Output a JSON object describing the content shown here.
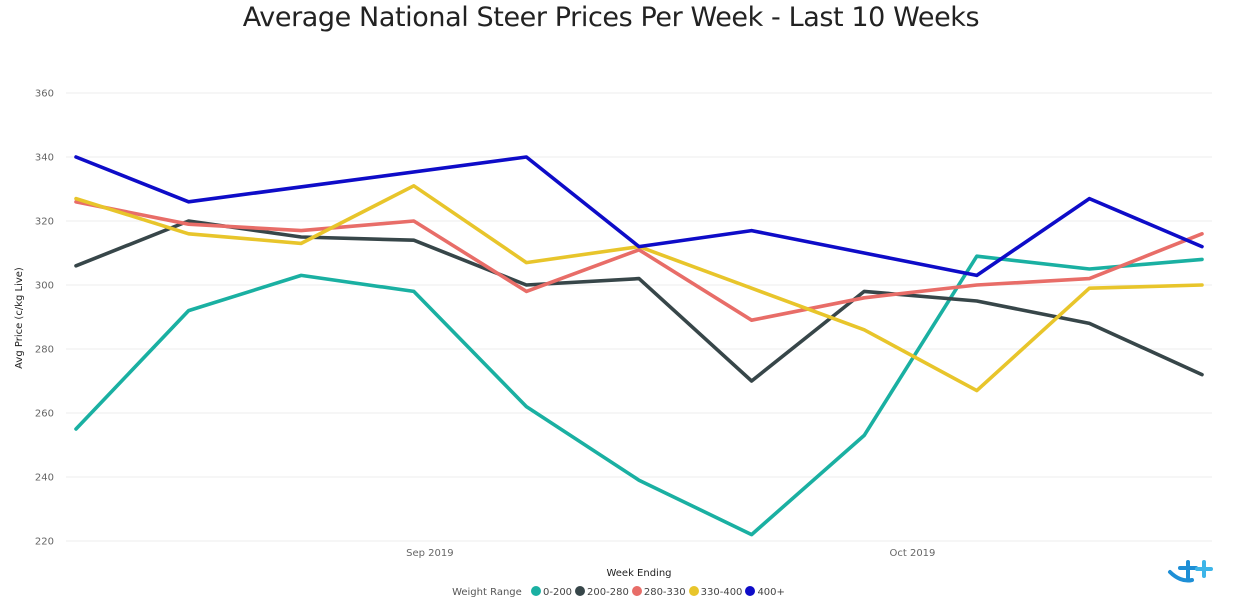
{
  "chart_data": {
    "type": "line",
    "title": "Average National Steer Prices Per Week - Last 10 Weeks",
    "xlabel": "Week Ending",
    "ylabel": "Avg Price (c/kg Live)",
    "ylim": [
      220,
      360
    ],
    "yticks": [
      220,
      240,
      260,
      280,
      300,
      320,
      340,
      360
    ],
    "x": [
      "2019-08-10",
      "2019-08-17",
      "2019-08-24",
      "2019-08-31",
      "2019-09-07",
      "2019-09-14",
      "2019-09-21",
      "2019-09-28",
      "2019-10-05",
      "2019-10-12",
      "2019-10-19"
    ],
    "x_range": [
      "2019-08-10",
      "2019-10-19"
    ],
    "xticks": [
      {
        "label": "Sep 2019",
        "date": "2019-09-01"
      },
      {
        "label": "Oct 2019",
        "date": "2019-10-01"
      }
    ],
    "grid": true,
    "legend": {
      "title": "Weight Range",
      "placement": "bottom"
    },
    "series": [
      {
        "name": "0-200",
        "color": "#1AB0A2",
        "values": [
          255,
          292,
          303,
          298,
          262,
          239,
          222,
          253,
          309,
          305,
          308
        ]
      },
      {
        "name": "200-280",
        "color": "#374649",
        "values": [
          306,
          320,
          315,
          314,
          300,
          302,
          270,
          298,
          295,
          288,
          272
        ]
      },
      {
        "name": "280-330",
        "color": "#E86D68",
        "values": [
          326,
          319,
          317,
          320,
          298,
          311,
          289,
          296,
          300,
          302,
          316
        ]
      },
      {
        "name": "330-400",
        "color": "#E8C52B",
        "values": [
          327,
          316,
          313,
          331,
          307,
          312,
          299,
          286,
          267,
          299,
          300
        ]
      },
      {
        "name": "400+",
        "color": "#0E0CC8",
        "values": [
          340,
          326,
          null,
          null,
          340,
          312,
          317,
          310,
          303,
          327,
          312
        ]
      }
    ]
  }
}
